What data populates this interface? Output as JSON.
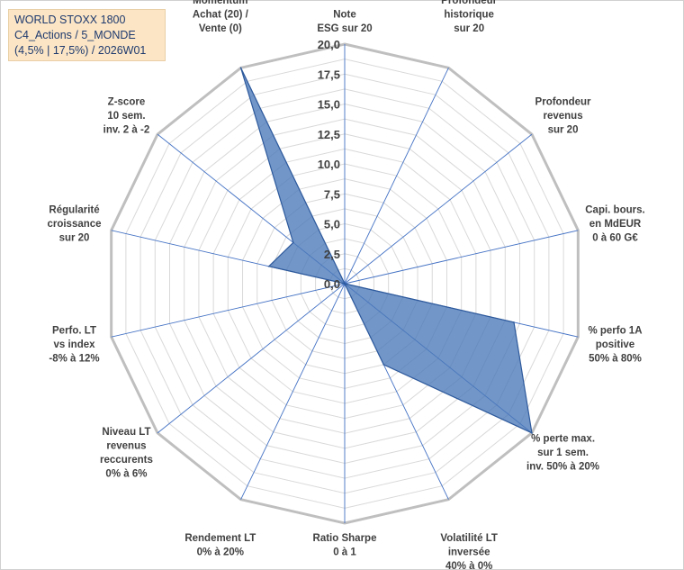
{
  "title": {
    "lines": [
      "WORLD STOXX 1800",
      "C4_Actions / 5_MONDE",
      "(4,5% | 17,5%) / 2026W01"
    ]
  },
  "colors": {
    "fill": "#4a78b8",
    "stroke": "#2e5a9c",
    "grid": "#d9d9d9",
    "outer": "#bfbfbf",
    "spoke": "#4472c4",
    "title_bg": "#fbe5c5"
  },
  "chart_data": {
    "type": "radar",
    "rmin": 0,
    "rmax": 20,
    "tick_step": 2.5,
    "tick_labels": [
      "0,0",
      "2,5",
      "5,0",
      "7,5",
      "10,0",
      "12,5",
      "15,0",
      "17,5",
      "20,0"
    ],
    "grid_step": 1.25,
    "axes": [
      {
        "label": [
          "Note",
          "ESG sur 20"
        ],
        "value": 0
      },
      {
        "label": [
          "Profondeur",
          "historique",
          "sur 20"
        ],
        "value": 0
      },
      {
        "label": [
          "Profondeur",
          "revenus",
          "sur 20"
        ],
        "value": 0
      },
      {
        "label": [
          "Capi. bours.",
          "en MdEUR",
          "0 à 60 G€"
        ],
        "value": 0
      },
      {
        "label": [
          "% perfo 1A",
          "positive",
          "50% à 80%"
        ],
        "value": 14.5
      },
      {
        "label": [
          "% perte max.",
          "sur 1 sem.",
          "inv. 50% à 20%"
        ],
        "value": 20
      },
      {
        "label": [
          "Volatilité LT",
          "inversée",
          "40% à 0%"
        ],
        "value": 7.5
      },
      {
        "label": [
          "Ratio Sharpe",
          "0 à 1"
        ],
        "value": 0
      },
      {
        "label": [
          "Rendement LT",
          "0% à 20%"
        ],
        "value": 0
      },
      {
        "label": [
          "Niveau LT",
          "revenus",
          "reccurents",
          "0% à 6%"
        ],
        "value": 0
      },
      {
        "label": [
          "Perfo. LT",
          "vs index",
          "-8% à 12%"
        ],
        "value": 0
      },
      {
        "label": [
          "Régularité",
          "croissance",
          "sur 20"
        ],
        "value": 6.5
      },
      {
        "label": [
          "Z-score",
          "10 sem.",
          "inv. 2 à -2"
        ],
        "value": 5.5
      },
      {
        "label": [
          "Momentum",
          "Achat (20) /",
          "Vente (0)"
        ],
        "value": 20
      }
    ]
  }
}
